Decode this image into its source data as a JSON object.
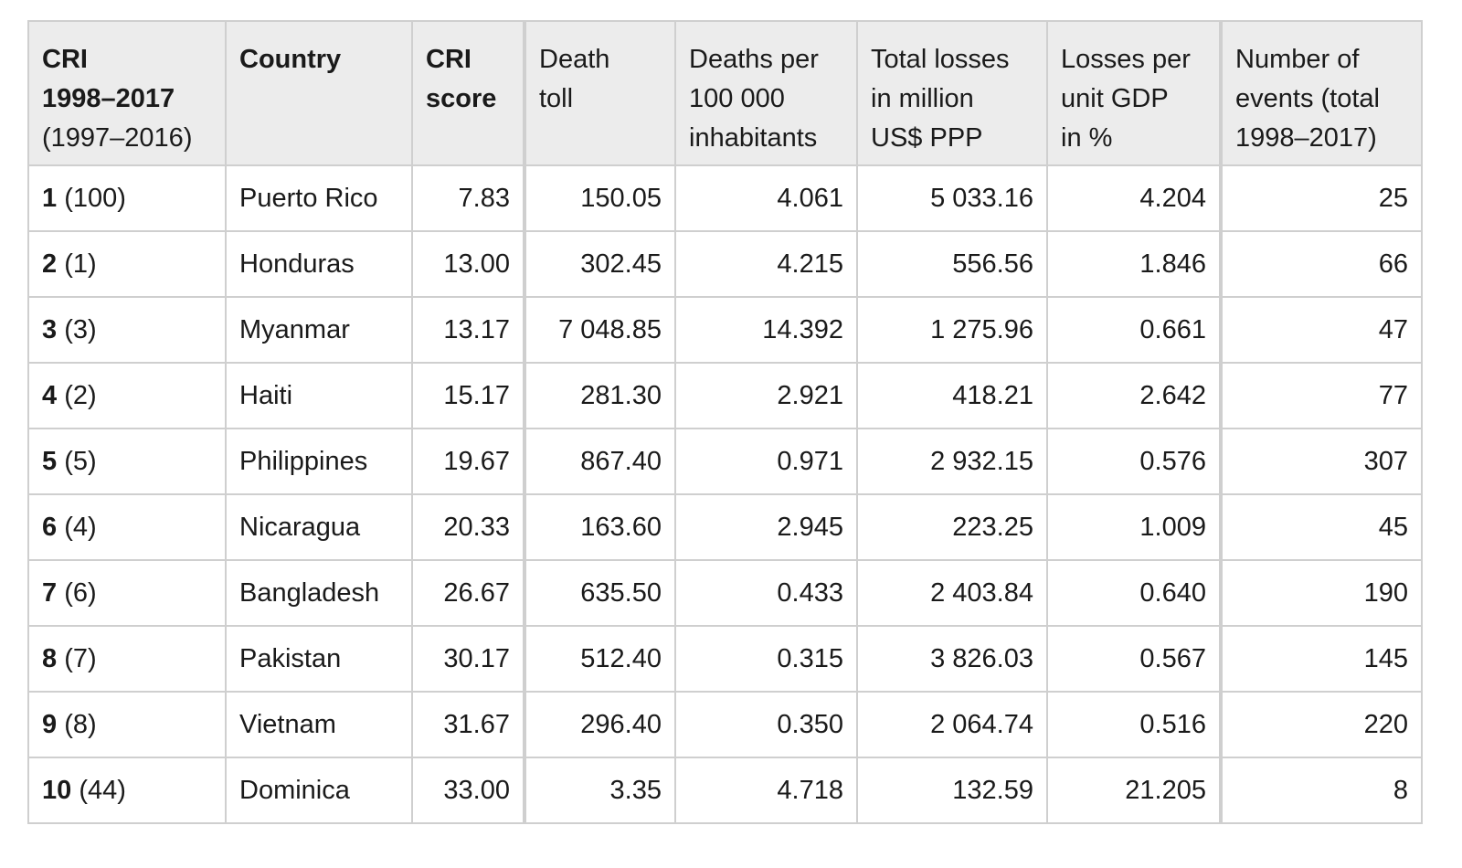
{
  "headers": {
    "rank": {
      "line1": "CRI",
      "line2": "1998–2017",
      "line3": "(1997–2016)"
    },
    "country": "Country",
    "cri_score": {
      "line1": "CRI",
      "line2": "score"
    },
    "death_toll": {
      "line1": "Death",
      "line2": "toll"
    },
    "deaths_per": {
      "line1": "Deaths per",
      "line2": "100 000",
      "line3": "inhabitants"
    },
    "total_losses": {
      "line1": "Total losses",
      "line2": "in million",
      "line3": "US$ PPP"
    },
    "losses_per_gdp": {
      "line1": "Losses per",
      "line2": "unit GDP",
      "line3": "in %"
    },
    "events": {
      "line1": "Number of",
      "line2": "events (total",
      "line3": "1998–2017)"
    }
  },
  "rows": [
    {
      "rank": "1",
      "prev_rank": " (100)",
      "country": "Puerto Rico",
      "cri_score": "7.83",
      "death_toll": "150.05",
      "deaths_per": "4.061",
      "total_losses": "5 033.16",
      "losses_per_gdp": "4.204",
      "events": "25"
    },
    {
      "rank": "2",
      "prev_rank": " (1)",
      "country": "Honduras",
      "cri_score": "13.00",
      "death_toll": "302.45",
      "deaths_per": "4.215",
      "total_losses": "556.56",
      "losses_per_gdp": "1.846",
      "events": "66"
    },
    {
      "rank": "3",
      "prev_rank": " (3)",
      "country": "Myanmar",
      "cri_score": "13.17",
      "death_toll": "7 048.85",
      "deaths_per": "14.392",
      "total_losses": "1 275.96",
      "losses_per_gdp": "0.661",
      "events": "47"
    },
    {
      "rank": "4",
      "prev_rank": " (2)",
      "country": "Haiti",
      "cri_score": "15.17",
      "death_toll": "281.30",
      "deaths_per": "2.921",
      "total_losses": "418.21",
      "losses_per_gdp": "2.642",
      "events": "77"
    },
    {
      "rank": "5",
      "prev_rank": " (5)",
      "country": "Philippines",
      "cri_score": "19.67",
      "death_toll": "867.40",
      "deaths_per": "0.971",
      "total_losses": "2 932.15",
      "losses_per_gdp": "0.576",
      "events": "307"
    },
    {
      "rank": "6",
      "prev_rank": " (4)",
      "country": "Nicaragua",
      "cri_score": "20.33",
      "death_toll": "163.60",
      "deaths_per": "2.945",
      "total_losses": "223.25",
      "losses_per_gdp": "1.009",
      "events": "45"
    },
    {
      "rank": "7",
      "prev_rank": " (6)",
      "country": "Bangladesh",
      "cri_score": "26.67",
      "death_toll": "635.50",
      "deaths_per": "0.433",
      "total_losses": "2 403.84",
      "losses_per_gdp": "0.640",
      "events": "190"
    },
    {
      "rank": "8",
      "prev_rank": " (7)",
      "country": "Pakistan",
      "cri_score": "30.17",
      "death_toll": "512.40",
      "deaths_per": "0.315",
      "total_losses": "3 826.03",
      "losses_per_gdp": "0.567",
      "events": "145"
    },
    {
      "rank": "9",
      "prev_rank": " (8)",
      "country": "Vietnam",
      "cri_score": "31.67",
      "death_toll": "296.40",
      "deaths_per": "0.350",
      "total_losses": "2 064.74",
      "losses_per_gdp": "0.516",
      "events": "220"
    },
    {
      "rank": "10",
      "prev_rank": " (44)",
      "country": "Dominica",
      "cri_score": "33.00",
      "death_toll": "3.35",
      "deaths_per": "4.718",
      "total_losses": "132.59",
      "losses_per_gdp": "21.205",
      "events": "8"
    }
  ]
}
